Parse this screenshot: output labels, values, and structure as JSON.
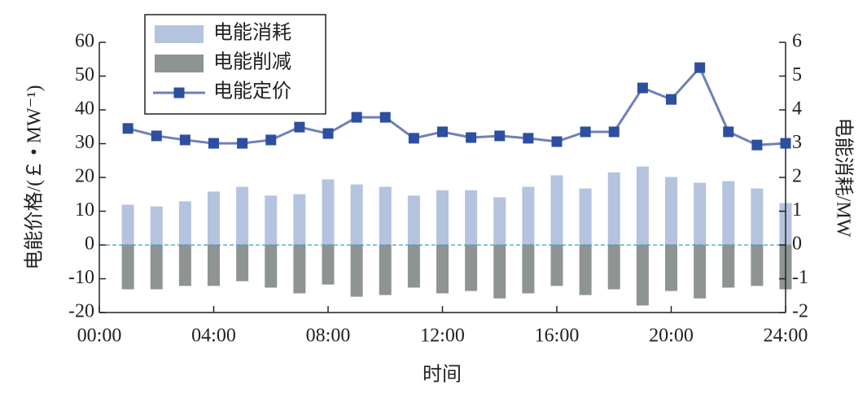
{
  "chart_data": {
    "type": "bar-line",
    "x_label": "时间",
    "y_label": "电能价格/(￡ • MW⁻¹)",
    "y2_label": "电能消耗/MW",
    "x": [
      1,
      2,
      3,
      4,
      5,
      6,
      7,
      8,
      9,
      10,
      11,
      12,
      13,
      14,
      15,
      16,
      17,
      18,
      19,
      20,
      21,
      22,
      23,
      24
    ],
    "xlim": [
      0,
      24
    ],
    "xticks": [
      {
        "value": 0,
        "label": "00:00"
      },
      {
        "value": 4,
        "label": "04:00"
      },
      {
        "value": 8,
        "label": "08:00"
      },
      {
        "value": 12,
        "label": "12:00"
      },
      {
        "value": 16,
        "label": "16:00"
      },
      {
        "value": 20,
        "label": "20:00"
      },
      {
        "value": 24,
        "label": "24:00"
      }
    ],
    "ylim": [
      -20,
      60
    ],
    "yticks": [
      -20,
      -10,
      0,
      10,
      20,
      30,
      40,
      50,
      60
    ],
    "y2lim": [
      -2,
      6
    ],
    "y2ticks": [
      -2,
      -1,
      0,
      1,
      2,
      3,
      4,
      5,
      6
    ],
    "series": [
      {
        "name": "电能消耗",
        "type": "bar",
        "axis": "y2",
        "color": "#b4c3de",
        "values": [
          1.18,
          1.13,
          1.28,
          1.57,
          1.71,
          1.45,
          1.49,
          1.93,
          1.78,
          1.71,
          1.45,
          1.61,
          1.61,
          1.4,
          1.71,
          2.05,
          1.66,
          2.14,
          2.31,
          2.0,
          1.83,
          1.88,
          1.66,
          1.23
        ]
      },
      {
        "name": "电能削减",
        "type": "bar",
        "axis": "y2",
        "color": "#8e9393",
        "values": [
          -1.3,
          -1.3,
          -1.2,
          -1.2,
          -1.06,
          -1.25,
          -1.42,
          -1.16,
          -1.52,
          -1.47,
          -1.25,
          -1.42,
          -1.35,
          -1.57,
          -1.42,
          -1.2,
          -1.47,
          -1.3,
          -1.78,
          -1.35,
          -1.57,
          -1.25,
          -1.2,
          -1.3
        ]
      },
      {
        "name": "电能定价",
        "type": "line",
        "color": "#7080b6",
        "marker_color": "#2c4f9f",
        "values": [
          34.5,
          32.3,
          31.1,
          30.1,
          30.1,
          31.1,
          34.9,
          33.0,
          37.8,
          37.8,
          31.6,
          33.5,
          31.8,
          32.3,
          31.6,
          30.6,
          33.5,
          33.5,
          46.5,
          43.1,
          52.5,
          33.5,
          29.6,
          30.1
        ]
      }
    ],
    "zero_line_color": "#3a9fd0"
  }
}
